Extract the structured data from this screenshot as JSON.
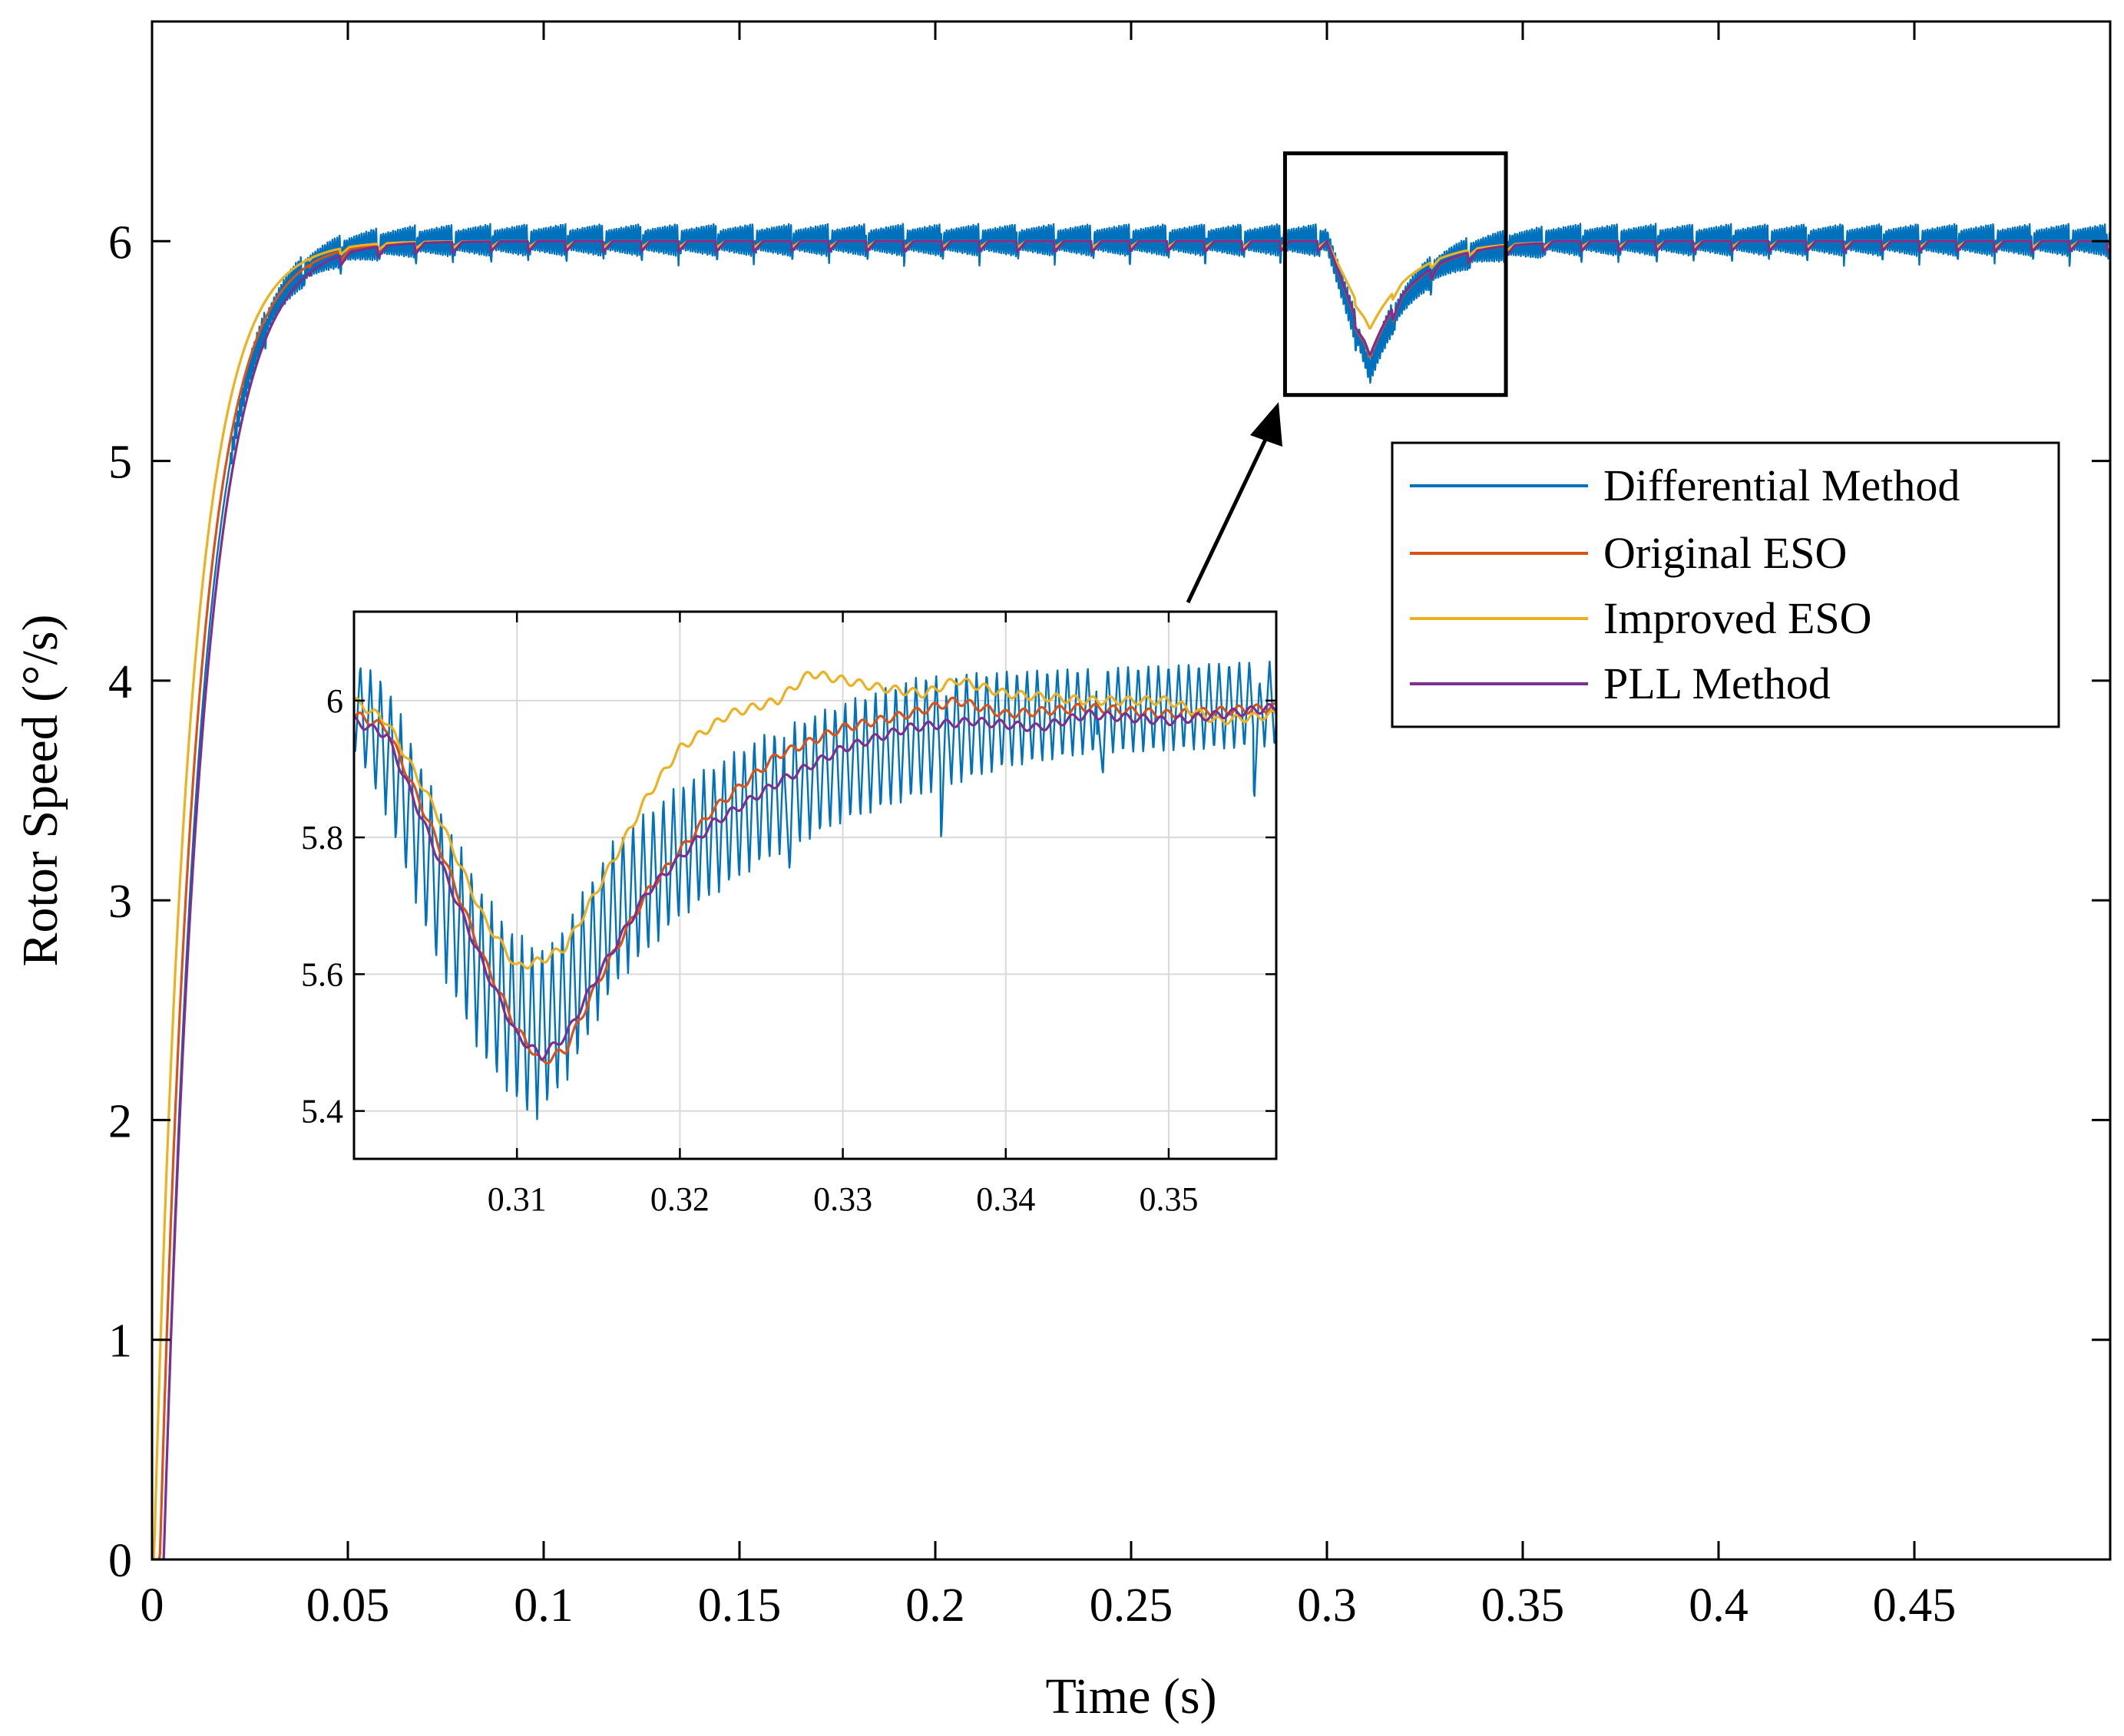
{
  "chart_data": [
    {
      "type": "line",
      "role": "main",
      "title": "",
      "xlabel": "Time (s)",
      "ylabel": "Rotor Speed (°/s)",
      "xlim": [
        0,
        0.5
      ],
      "ylim": [
        0,
        7
      ],
      "grid": false,
      "x_ticks": [
        0,
        0.05,
        0.1,
        0.15,
        0.2,
        0.25,
        0.3,
        0.35,
        0.4,
        0.45
      ],
      "x_tick_labels": [
        "0",
        "0.05",
        "0.1",
        "0.15",
        "0.2",
        "0.25",
        "0.3",
        "0.35",
        "0.4",
        "0.45"
      ],
      "y_ticks": [
        0,
        1,
        2,
        3,
        4,
        5,
        6
      ],
      "y_tick_labels": [
        "0",
        "1",
        "2",
        "3",
        "4",
        "5",
        "6"
      ],
      "legend_position": "right",
      "series": [
        {
          "name": "Differential Method",
          "color": "#0072BD",
          "steady_value": 6,
          "ripple_band": [
            5.93,
            6.08
          ],
          "ripple_period": 0.0096,
          "dip_min": 5.4
        },
        {
          "name": "Original ESO",
          "color": "#D95319",
          "steady_value": 6,
          "dip_min": 5.47
        },
        {
          "name": "Improved ESO",
          "color": "#EDB120",
          "steady_value": 6,
          "dip_min": 5.6
        },
        {
          "name": "PLL Method",
          "color": "#7E2F8E",
          "steady_value": 6,
          "dip_min": 5.48
        }
      ],
      "zoom_box": {
        "x_range": [
          0.2893,
          0.3457
        ],
        "y_range": [
          5.3,
          6.4
        ]
      },
      "annotations": [
        {
          "type": "arrow",
          "from": "inset",
          "to": "zoom_box"
        }
      ]
    },
    {
      "type": "line",
      "role": "inset",
      "xlim": [
        0.3,
        0.3566
      ],
      "ylim": [
        5.33,
        6.13
      ],
      "grid": true,
      "x_ticks": [
        0.31,
        0.32,
        0.33,
        0.34,
        0.35
      ],
      "x_tick_labels": [
        "0.31",
        "0.32",
        "0.33",
        "0.34",
        "0.35"
      ],
      "y_ticks": [
        5.4,
        5.6,
        5.8,
        6
      ],
      "y_tick_labels": [
        "5.4",
        "5.6",
        "5.8",
        "6"
      ],
      "series": [
        {
          "name": "Differential Method",
          "color": "#0072BD",
          "envelope_upper": [
            [
              0.3,
              6.06
            ],
            [
              0.302,
              6.03
            ],
            [
              0.305,
              5.86
            ],
            [
              0.308,
              5.72
            ],
            [
              0.31,
              5.66
            ],
            [
              0.312,
              5.64
            ],
            [
              0.316,
              5.8
            ],
            [
              0.32,
              5.88
            ],
            [
              0.325,
              5.95
            ],
            [
              0.33,
              6.0
            ],
            [
              0.335,
              6.04
            ],
            [
              0.3566,
              6.06
            ]
          ],
          "envelope_lower": [
            [
              0.3,
              5.93
            ],
            [
              0.302,
              5.83
            ],
            [
              0.305,
              5.62
            ],
            [
              0.308,
              5.47
            ],
            [
              0.31,
              5.41
            ],
            [
              0.311,
              5.38
            ],
            [
              0.313,
              5.44
            ],
            [
              0.316,
              5.58
            ],
            [
              0.32,
              5.68
            ],
            [
              0.325,
              5.76
            ],
            [
              0.33,
              5.82
            ],
            [
              0.335,
              5.86
            ],
            [
              0.34,
              5.9
            ],
            [
              0.345,
              5.92
            ],
            [
              0.3566,
              5.93
            ]
          ]
        },
        {
          "name": "Original ESO",
          "color": "#D95319",
          "points": [
            [
              0.3,
              5.98
            ],
            [
              0.302,
              5.96
            ],
            [
              0.305,
              5.8
            ],
            [
              0.308,
              5.62
            ],
            [
              0.31,
              5.52
            ],
            [
              0.3115,
              5.47
            ],
            [
              0.313,
              5.49
            ],
            [
              0.315,
              5.59
            ],
            [
              0.318,
              5.72
            ],
            [
              0.322,
              5.84
            ],
            [
              0.326,
              5.92
            ],
            [
              0.33,
              5.96
            ],
            [
              0.334,
              5.98
            ],
            [
              0.337,
              6.0
            ],
            [
              0.34,
              5.98
            ],
            [
              0.345,
              5.99
            ],
            [
              0.35,
              5.98
            ],
            [
              0.3566,
              5.99
            ]
          ]
        },
        {
          "name": "Improved ESO",
          "color": "#EDB120",
          "points": [
            [
              0.3,
              6.0
            ],
            [
              0.302,
              5.97
            ],
            [
              0.305,
              5.84
            ],
            [
              0.308,
              5.68
            ],
            [
              0.31,
              5.61
            ],
            [
              0.3115,
              5.62
            ],
            [
              0.313,
              5.64
            ],
            [
              0.316,
              5.77
            ],
            [
              0.318,
              5.86
            ],
            [
              0.32,
              5.93
            ],
            [
              0.323,
              5.98
            ],
            [
              0.326,
              6.0
            ],
            [
              0.328,
              6.04
            ],
            [
              0.33,
              6.03
            ],
            [
              0.332,
              6.02
            ],
            [
              0.335,
              6.01
            ],
            [
              0.337,
              6.03
            ],
            [
              0.34,
              6.01
            ],
            [
              0.345,
              6.0
            ],
            [
              0.35,
              6.0
            ],
            [
              0.353,
              5.97
            ],
            [
              0.3566,
              5.98
            ]
          ]
        },
        {
          "name": "PLL Method",
          "color": "#7E2F8E",
          "points": [
            [
              0.3,
              5.97
            ],
            [
              0.302,
              5.95
            ],
            [
              0.305,
              5.78
            ],
            [
              0.308,
              5.61
            ],
            [
              0.31,
              5.51
            ],
            [
              0.3115,
              5.48
            ],
            [
              0.313,
              5.51
            ],
            [
              0.315,
              5.6
            ],
            [
              0.318,
              5.72
            ],
            [
              0.322,
              5.82
            ],
            [
              0.326,
              5.88
            ],
            [
              0.33,
              5.93
            ],
            [
              0.334,
              5.96
            ],
            [
              0.338,
              5.97
            ],
            [
              0.342,
              5.96
            ],
            [
              0.345,
              5.98
            ],
            [
              0.35,
              5.97
            ],
            [
              0.3566,
              5.99
            ]
          ]
        }
      ]
    }
  ]
}
